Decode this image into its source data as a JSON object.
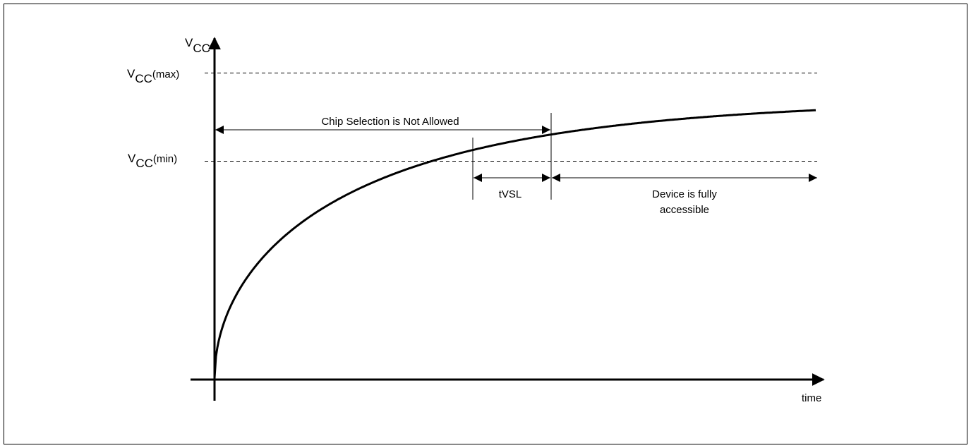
{
  "diagram": {
    "y_axis": {
      "label_base": "V",
      "label_sub": "CC"
    },
    "x_axis": {
      "label": "time"
    },
    "levels": {
      "vcc_max": {
        "base": "V",
        "sub": "CC",
        "suffix": "(max)"
      },
      "vcc_min": {
        "base": "V",
        "sub": "CC",
        "suffix": "(min)"
      }
    },
    "spans": {
      "chip_select_not_allowed": "Chip Selection is Not Allowed",
      "tvsl": "tVSL",
      "device_accessible_line1": "Device is fully",
      "device_accessible_line2": "accessible"
    }
  }
}
